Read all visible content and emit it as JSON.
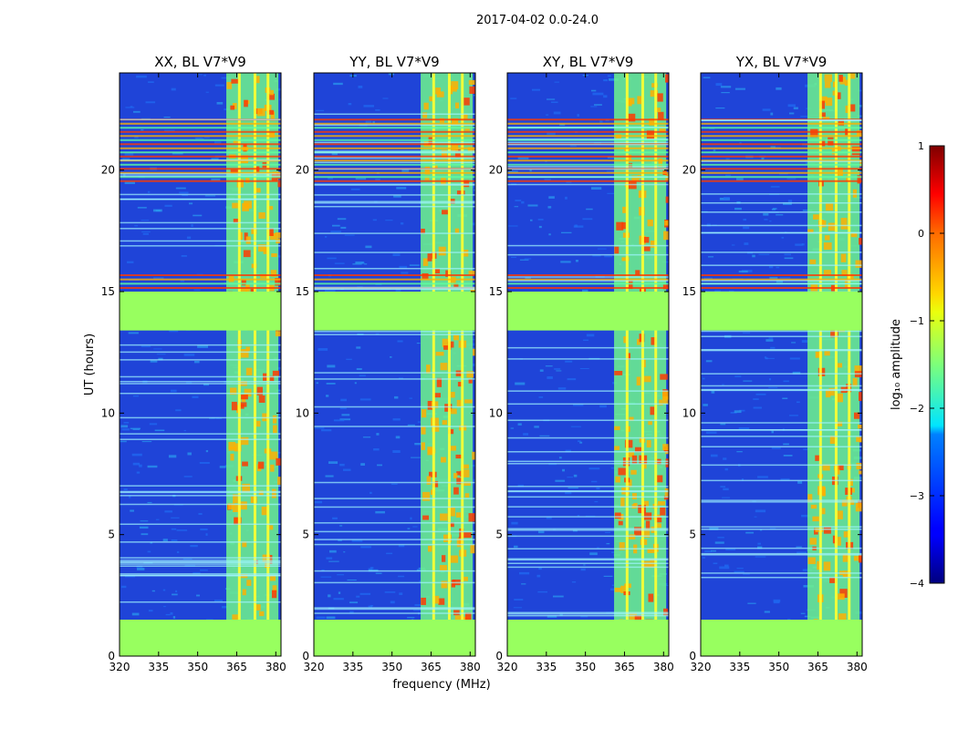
{
  "suptitle": "2017-04-02 0.0-24.0",
  "ylabel": "UT (hours)",
  "xlabel": "frequency (MHz)",
  "colorbar": {
    "label": "log₁₀ amplitude",
    "ticks": [
      1,
      0,
      -1,
      -2,
      -3,
      -4
    ],
    "tick_labels": [
      "1",
      "0",
      "−1",
      "−2",
      "−3",
      "−4"
    ],
    "range": [
      -4,
      1
    ]
  },
  "chart_data": {
    "type": "heatmap",
    "x_range": [
      320,
      382
    ],
    "y_range": [
      0,
      24
    ],
    "x_ticks": [
      320,
      335,
      350,
      365,
      380
    ],
    "x_tick_labels": [
      "320",
      "335",
      "350",
      "365",
      "380"
    ],
    "y_ticks": [
      0,
      5,
      10,
      15,
      20
    ],
    "y_tick_labels": [
      "0",
      "5",
      "10",
      "15",
      "20"
    ],
    "colormap": "jet",
    "panels": [
      {
        "title": "XX, BL V7*V9"
      },
      {
        "title": "YY, BL V7*V9"
      },
      {
        "title": "XY, BL V7*V9"
      },
      {
        "title": "YX, BL V7*V9"
      }
    ],
    "flagged_time_ranges_hours": [
      [
        0,
        1.5
      ],
      [
        13.4,
        15.0
      ]
    ],
    "rfi_frequency_band_mhz": [
      361,
      381
    ],
    "rfi_channel_lines_mhz": [
      366,
      372,
      377
    ],
    "background_level_log10": -3.0,
    "flagged_level_log10": -1.0,
    "strong_time_bands_hours": [
      [
        19.5,
        22.2
      ],
      [
        15.1,
        15.8
      ]
    ],
    "colors": {
      "flagged": "#98ff5f",
      "background": "#1f44d8",
      "background_light": "#1f6cf4",
      "rfi_band": "#6ff58c",
      "rfi_hot": "#ff3a00",
      "rfi_warm": "#ffb000",
      "rfi_line": "#ffff30"
    }
  }
}
